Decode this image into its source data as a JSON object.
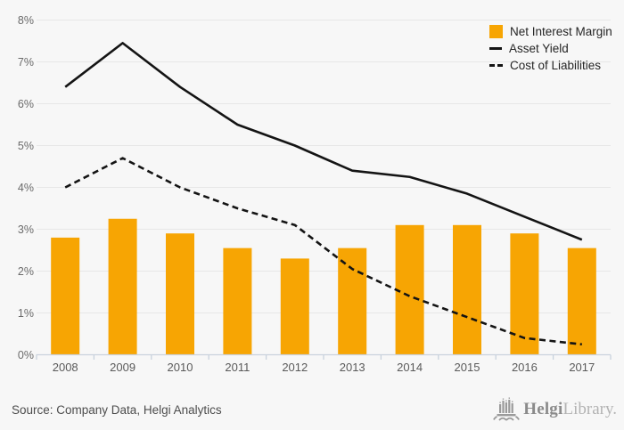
{
  "chart_data": {
    "type": "bar+line",
    "title": "",
    "xlabel": "",
    "ylabel": "",
    "categories": [
      "2008",
      "2009",
      "2010",
      "2011",
      "2012",
      "2013",
      "2014",
      "2015",
      "2016",
      "2017"
    ],
    "yticks": [
      "0%",
      "1%",
      "2%",
      "3%",
      "4%",
      "5%",
      "6%",
      "7%",
      "8%"
    ],
    "ylim": [
      0,
      8
    ],
    "grid": true,
    "legend_position": "top-right",
    "series": [
      {
        "name": "Net Interest Margin",
        "type": "bar",
        "style": "solid",
        "color": "#F7A503",
        "values": [
          2.8,
          3.25,
          2.9,
          2.55,
          2.3,
          2.55,
          3.1,
          3.1,
          2.9,
          2.55
        ]
      },
      {
        "name": "Asset Yield",
        "type": "line",
        "style": "solid",
        "color": "#141414",
        "values": [
          6.4,
          7.45,
          6.4,
          5.5,
          5.0,
          4.4,
          4.25,
          3.85,
          3.3,
          2.75
        ]
      },
      {
        "name": "Cost of Liabilities",
        "type": "line",
        "style": "dashed",
        "color": "#141414",
        "values": [
          4.0,
          4.7,
          4.0,
          3.5,
          3.1,
          2.05,
          1.4,
          0.9,
          0.4,
          0.25
        ]
      }
    ]
  },
  "footer": {
    "source": "Source: Company Data, Helgi Analytics",
    "logo": {
      "brand_bold": "Helgi",
      "brand_light": "Library."
    }
  },
  "colors": {
    "background": "#f7f7f7",
    "bar": "#F7A503",
    "line": "#141414",
    "grid": "#e7e7e7",
    "axis": "#c9d2dd",
    "tick_label": "#6b6b6b",
    "source_text": "#4d4d4d",
    "logo_gray": "#9a9a9a"
  }
}
